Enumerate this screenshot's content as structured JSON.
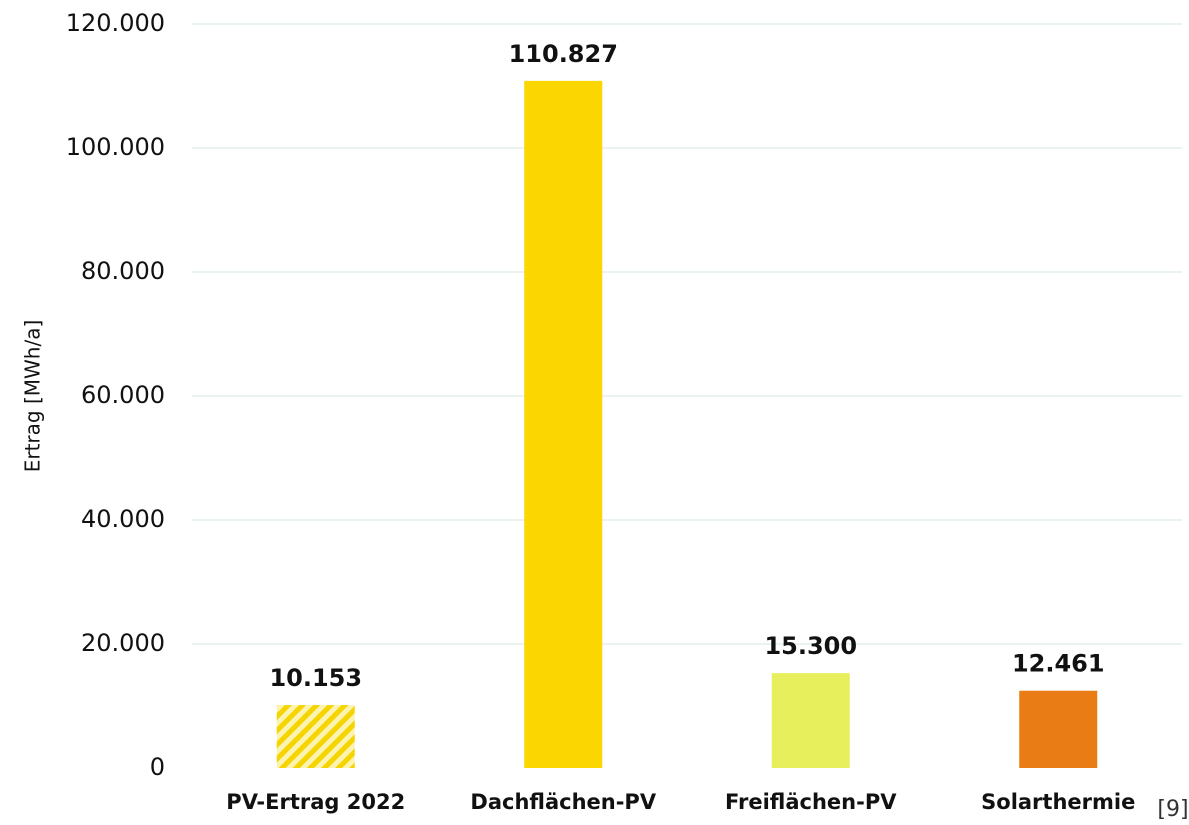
{
  "chart_data": {
    "type": "bar",
    "y_label": "Ertrag [MWh/a]",
    "categories": [
      "PV-Ertrag 2022",
      "Dachflächen-PV",
      "Freiflächen-PV",
      "Solarthermie"
    ],
    "values": [
      10153,
      110827,
      15300,
      12461
    ],
    "value_labels": [
      "10.153",
      "110.827",
      "15.300",
      "12.461"
    ],
    "colors": [
      "#f5d400",
      "#fbd600",
      "#e8ef5c",
      "#e97c14"
    ],
    "hatched": [
      true,
      false,
      false,
      false
    ],
    "ylim": [
      0,
      120000
    ],
    "yticks": [
      0,
      {
        "value": 20000,
        "label": "20.000"
      },
      {
        "value": 40000,
        "label": "40.000"
      },
      {
        "value": 60000,
        "label": "60.000"
      },
      {
        "value": 80000,
        "label": "80.000"
      },
      {
        "value": 100000,
        "label": "100.000"
      },
      {
        "value": 120000,
        "label": "120.000"
      }
    ],
    "grid": true,
    "annotation": "[9]"
  }
}
